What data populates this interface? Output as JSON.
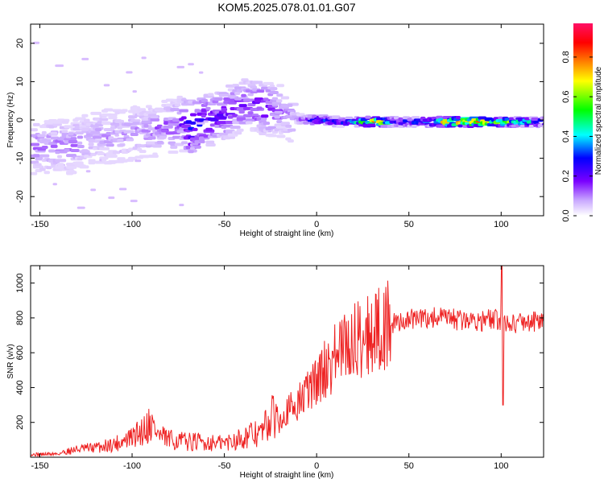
{
  "title": "KOM5.2025.078.01.01.G07",
  "chart_data": [
    {
      "type": "heatmap",
      "xlabel": "Height of straight line (km)",
      "ylabel": "Frequency (Hz)",
      "xlim": [
        -155,
        123
      ],
      "ylim": [
        -25,
        25
      ],
      "x_ticks": [
        -150,
        -100,
        -50,
        0,
        50,
        100
      ],
      "y_ticks": [
        -20,
        -10,
        0,
        10,
        20
      ],
      "x_tick_labels": [
        "-150",
        "-100",
        "-50",
        "0",
        "50",
        "100"
      ],
      "y_tick_labels": [
        "-20",
        "-10",
        "0",
        "10",
        "20"
      ],
      "colorbar": {
        "label": "Normalized spectral amplitude",
        "range": [
          0,
          0.97
        ],
        "ticks": [
          0.0,
          0.2,
          0.4,
          0.6,
          0.8
        ],
        "tick_labels": [
          "0.0",
          "0.2",
          "0.4",
          "0.6",
          "0.8"
        ],
        "colormap": [
          "#ffffff",
          "#c9a8ff",
          "#7a00ff",
          "#0000ff",
          "#00ffff",
          "#00ff00",
          "#ffff00",
          "#ff8000",
          "#ff0000",
          "#ff1066"
        ]
      },
      "ridge": [
        {
          "x": -135,
          "y": -7,
          "v": 0.15
        },
        {
          "x": -125,
          "y": -5,
          "v": 0.12
        },
        {
          "x": -110,
          "y": -4,
          "v": 0.13
        },
        {
          "x": -95,
          "y": -3,
          "v": 0.14
        },
        {
          "x": -85,
          "y": -2,
          "v": 0.16
        },
        {
          "x": -75,
          "y": -1,
          "v": 0.2
        },
        {
          "x": -70,
          "y": -2,
          "v": 0.35
        },
        {
          "x": -60,
          "y": 0,
          "v": 0.25
        },
        {
          "x": -50,
          "y": 2,
          "v": 0.22
        },
        {
          "x": -40,
          "y": 4,
          "v": 0.2
        },
        {
          "x": -30,
          "y": 3,
          "v": 0.25
        },
        {
          "x": -20,
          "y": 2,
          "v": 0.12
        },
        {
          "x": -10,
          "y": 0,
          "v": 0.2
        },
        {
          "x": 0,
          "y": 0,
          "v": 0.35
        },
        {
          "x": 10,
          "y": -0.5,
          "v": 0.3
        },
        {
          "x": 20,
          "y": -0.5,
          "v": 0.45
        },
        {
          "x": 30,
          "y": -0.5,
          "v": 0.9
        },
        {
          "x": 40,
          "y": -0.5,
          "v": 0.3
        },
        {
          "x": 50,
          "y": -0.5,
          "v": 0.35
        },
        {
          "x": 60,
          "y": -0.5,
          "v": 0.45
        },
        {
          "x": 70,
          "y": -0.5,
          "v": 0.8
        },
        {
          "x": 80,
          "y": -0.5,
          "v": 0.85
        },
        {
          "x": 90,
          "y": -0.5,
          "v": 0.8
        },
        {
          "x": 100,
          "y": -0.5,
          "v": 0.6
        },
        {
          "x": 110,
          "y": -0.5,
          "v": 0.5
        },
        {
          "x": 120,
          "y": -0.5,
          "v": 0.4
        }
      ]
    },
    {
      "type": "line",
      "xlabel": "Height of straight line (km)",
      "ylabel": "SNR (v/v)",
      "xlim": [
        -155,
        123
      ],
      "ylim": [
        0,
        1100
      ],
      "x_ticks": [
        -150,
        -100,
        -50,
        0,
        50,
        100
      ],
      "y_ticks": [
        200,
        400,
        600,
        800,
        1000
      ],
      "x_tick_labels": [
        "-150",
        "-100",
        "-50",
        "0",
        "50",
        "100"
      ],
      "y_tick_labels": [
        "200",
        "400",
        "600",
        "800",
        "1000"
      ],
      "series": [
        {
          "color": "#ee2222",
          "x": [
            -155,
            -140,
            -135,
            -130,
            -120,
            -110,
            -100,
            -95,
            -90,
            -85,
            -80,
            -70,
            -60,
            -50,
            -40,
            -30,
            -25,
            -20,
            -15,
            -10,
            -5,
            0,
            5,
            10,
            15,
            20,
            25,
            30,
            35,
            40,
            45,
            50,
            55,
            60,
            65,
            70,
            75,
            80,
            85,
            90,
            95,
            100,
            105,
            110,
            115,
            123
          ],
          "y": [
            15,
            20,
            35,
            45,
            55,
            75,
            110,
            150,
            200,
            120,
            100,
            90,
            85,
            80,
            115,
            140,
            220,
            250,
            270,
            310,
            380,
            440,
            510,
            580,
            620,
            660,
            700,
            720,
            740,
            760,
            780,
            790,
            795,
            800,
            800,
            795,
            790,
            785,
            790,
            785,
            790,
            780,
            770,
            775,
            780,
            780
          ]
        }
      ]
    }
  ]
}
